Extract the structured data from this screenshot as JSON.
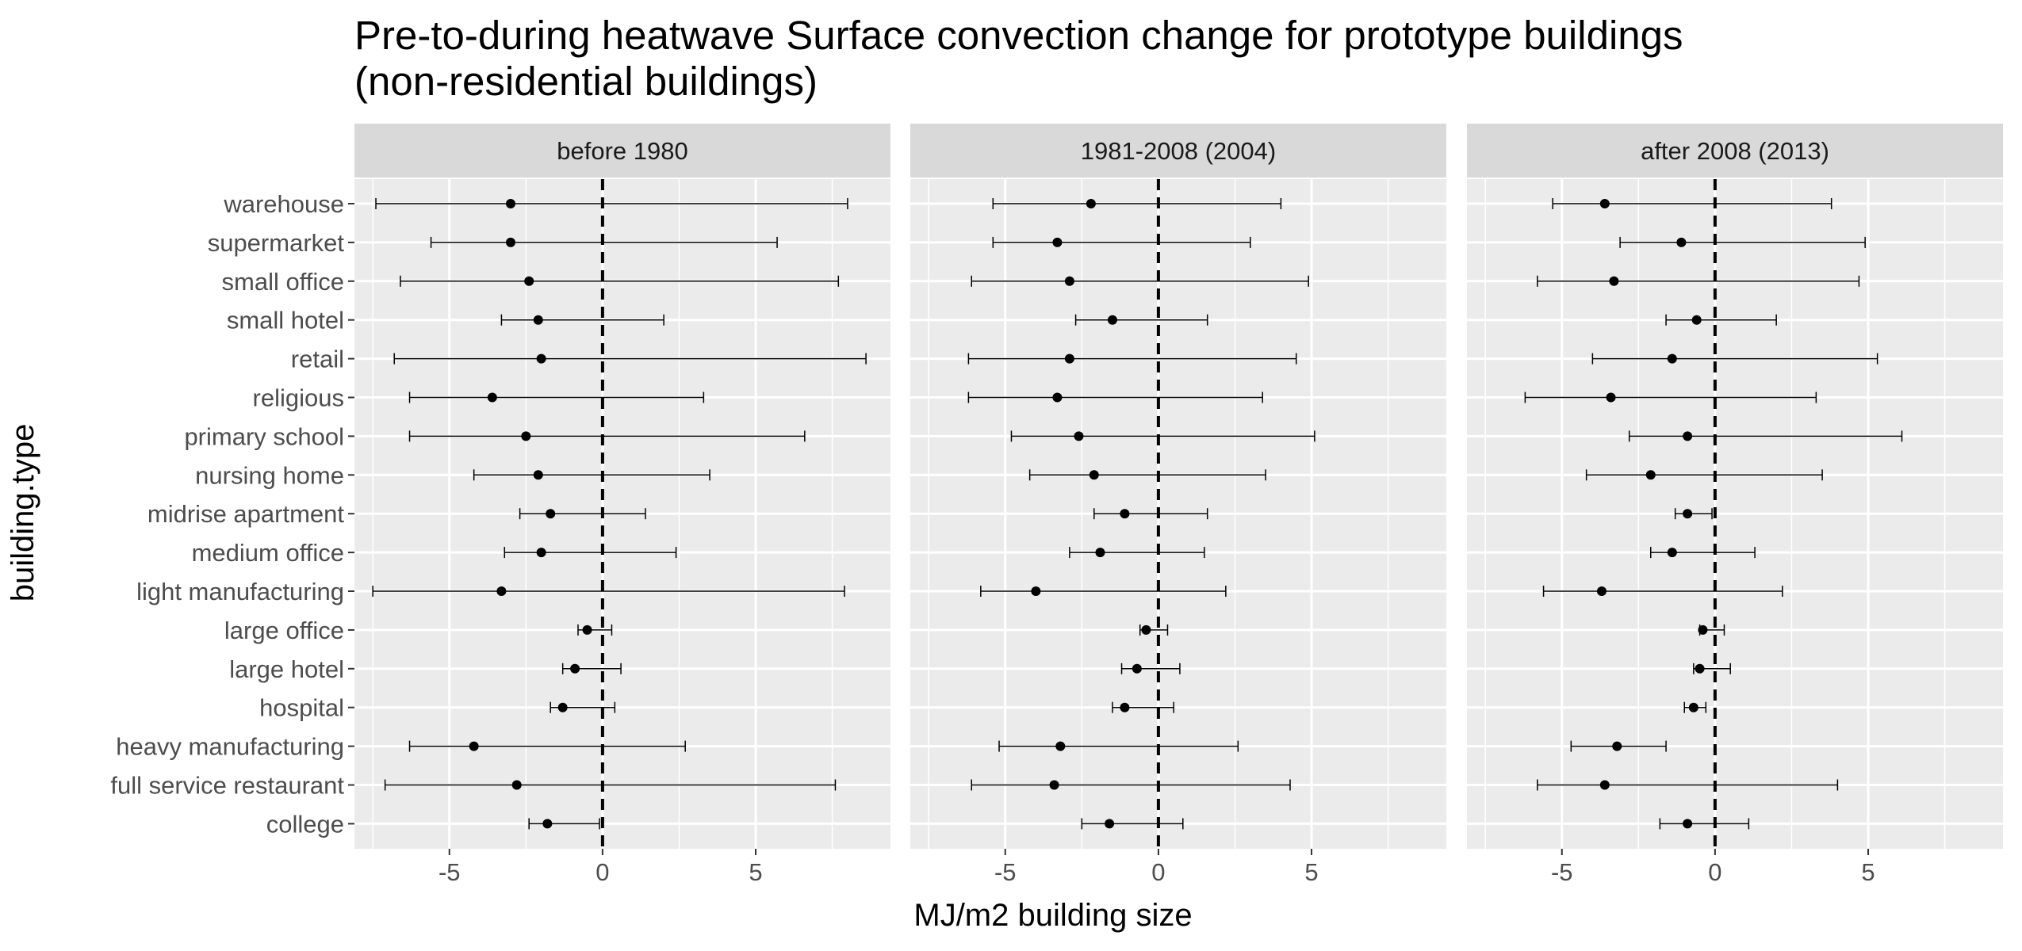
{
  "chart_data": {
    "type": "errorbar",
    "title_line1": "Pre-to-during heatwave Surface convection change for prototype buildings",
    "title_line2": "(non-residential buildings)",
    "xlabel": "MJ/m2 building size",
    "ylabel": "building.type",
    "xlim": [
      -8.1,
      9.4
    ],
    "x_ticks": [
      "-5",
      "0",
      "5"
    ],
    "x_tick_values": [
      -5,
      0,
      5
    ],
    "reference_line": 0,
    "grid": true,
    "categories": [
      "warehouse",
      "supermarket",
      "small office",
      "small hotel",
      "retail",
      "religious",
      "primary school",
      "nursing home",
      "midrise apartment",
      "medium office",
      "light manufacturing",
      "large office",
      "large hotel",
      "hospital",
      "heavy manufacturing",
      "full service restaurant",
      "college"
    ],
    "facets": [
      {
        "label": "before 1980",
        "points": [
          {
            "mean": -3.0,
            "low": -7.4,
            "high": 8.0
          },
          {
            "mean": -3.0,
            "low": -5.6,
            "high": 5.7
          },
          {
            "mean": -2.4,
            "low": -6.6,
            "high": 7.7
          },
          {
            "mean": -2.1,
            "low": -3.3,
            "high": 2.0
          },
          {
            "mean": -2.0,
            "low": -6.8,
            "high": 8.6
          },
          {
            "mean": -3.6,
            "low": -6.3,
            "high": 3.3
          },
          {
            "mean": -2.5,
            "low": -6.3,
            "high": 6.6
          },
          {
            "mean": -2.1,
            "low": -4.2,
            "high": 3.5
          },
          {
            "mean": -1.7,
            "low": -2.7,
            "high": 1.4
          },
          {
            "mean": -2.0,
            "low": -3.2,
            "high": 2.4
          },
          {
            "mean": -3.3,
            "low": -7.5,
            "high": 7.9
          },
          {
            "mean": -0.5,
            "low": -0.8,
            "high": 0.3
          },
          {
            "mean": -0.9,
            "low": -1.3,
            "high": 0.6
          },
          {
            "mean": -1.3,
            "low": -1.7,
            "high": 0.4
          },
          {
            "mean": -4.2,
            "low": -6.3,
            "high": 2.7
          },
          {
            "mean": -2.8,
            "low": -7.1,
            "high": 7.6
          },
          {
            "mean": -1.8,
            "low": -2.4,
            "high": -0.1
          }
        ]
      },
      {
        "label": "1981-2008 (2004)",
        "points": [
          {
            "mean": -2.2,
            "low": -5.4,
            "high": 4.0
          },
          {
            "mean": -3.3,
            "low": -5.4,
            "high": 3.0
          },
          {
            "mean": -2.9,
            "low": -6.1,
            "high": 4.9
          },
          {
            "mean": -1.5,
            "low": -2.7,
            "high": 1.6
          },
          {
            "mean": -2.9,
            "low": -6.2,
            "high": 4.5
          },
          {
            "mean": -3.3,
            "low": -6.2,
            "high": 3.4
          },
          {
            "mean": -2.6,
            "low": -4.8,
            "high": 5.1
          },
          {
            "mean": -2.1,
            "low": -4.2,
            "high": 3.5
          },
          {
            "mean": -1.1,
            "low": -2.1,
            "high": 1.6
          },
          {
            "mean": -1.9,
            "low": -2.9,
            "high": 1.5
          },
          {
            "mean": -4.0,
            "low": -5.8,
            "high": 2.2
          },
          {
            "mean": -0.4,
            "low": -0.6,
            "high": 0.3
          },
          {
            "mean": -0.7,
            "low": -1.2,
            "high": 0.7
          },
          {
            "mean": -1.1,
            "low": -1.5,
            "high": 0.5
          },
          {
            "mean": -3.2,
            "low": -5.2,
            "high": 2.6
          },
          {
            "mean": -3.4,
            "low": -6.1,
            "high": 4.3
          },
          {
            "mean": -1.6,
            "low": -2.5,
            "high": 0.8
          }
        ]
      },
      {
        "label": "after 2008 (2013)",
        "points": [
          {
            "mean": -3.6,
            "low": -5.3,
            "high": 3.8
          },
          {
            "mean": -1.1,
            "low": -3.1,
            "high": 4.9
          },
          {
            "mean": -3.3,
            "low": -5.8,
            "high": 4.7
          },
          {
            "mean": -0.6,
            "low": -1.6,
            "high": 2.0
          },
          {
            "mean": -1.4,
            "low": -4.0,
            "high": 5.3
          },
          {
            "mean": -3.4,
            "low": -6.2,
            "high": 3.3
          },
          {
            "mean": -0.9,
            "low": -2.8,
            "high": 6.1
          },
          {
            "mean": -2.1,
            "low": -4.2,
            "high": 3.5
          },
          {
            "mean": -0.9,
            "low": -1.3,
            "high": -0.1
          },
          {
            "mean": -1.4,
            "low": -2.1,
            "high": 1.3
          },
          {
            "mean": -3.7,
            "low": -5.6,
            "high": 2.2
          },
          {
            "mean": -0.4,
            "low": -0.5,
            "high": 0.3
          },
          {
            "mean": -0.5,
            "low": -0.7,
            "high": 0.5
          },
          {
            "mean": -0.7,
            "low": -1.0,
            "high": -0.3
          },
          {
            "mean": -3.2,
            "low": -4.7,
            "high": -1.6
          },
          {
            "mean": -3.6,
            "low": -5.8,
            "high": 4.0
          },
          {
            "mean": -0.9,
            "low": -1.8,
            "high": 1.1
          }
        ]
      }
    ]
  }
}
